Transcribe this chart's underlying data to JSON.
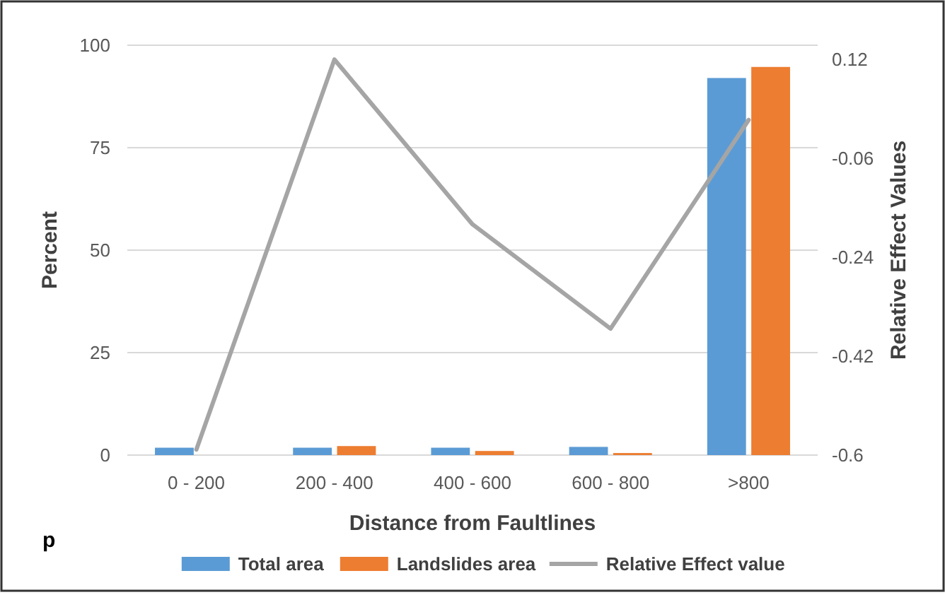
{
  "chart_data": {
    "type": "bar",
    "xlabel": "Distance from Faultlines",
    "ylabel": "Percent",
    "y2label": "Relative Effect Values",
    "annotations": [
      "p"
    ],
    "categories": [
      "0 - 200",
      "200 - 400",
      "400 - 600",
      "600 - 800",
      ">800"
    ],
    "series": [
      {
        "name": "Total area",
        "color": "#5b9bd5",
        "values": [
          1.8,
          1.8,
          1.8,
          2,
          92
        ]
      },
      {
        "name": "Landslides area",
        "color": "#ed7d31",
        "values": [
          0,
          2.2,
          1,
          0.5,
          94.7
        ]
      },
      {
        "name": "Relative Effect value",
        "type": "line",
        "axis": "y2",
        "color": "#a5a5a5",
        "values": [
          -0.59,
          0.12,
          -0.18,
          -0.37,
          0.01
        ]
      }
    ],
    "ylim": [
      0,
      100
    ],
    "yticks": [
      0,
      25,
      50,
      75,
      100
    ],
    "y2lim": [
      -0.6,
      0.146
    ],
    "y2ticks": [
      -0.6,
      -0.42,
      -0.24,
      -0.06,
      0.12
    ],
    "grid": "y",
    "legend": "bottom"
  }
}
